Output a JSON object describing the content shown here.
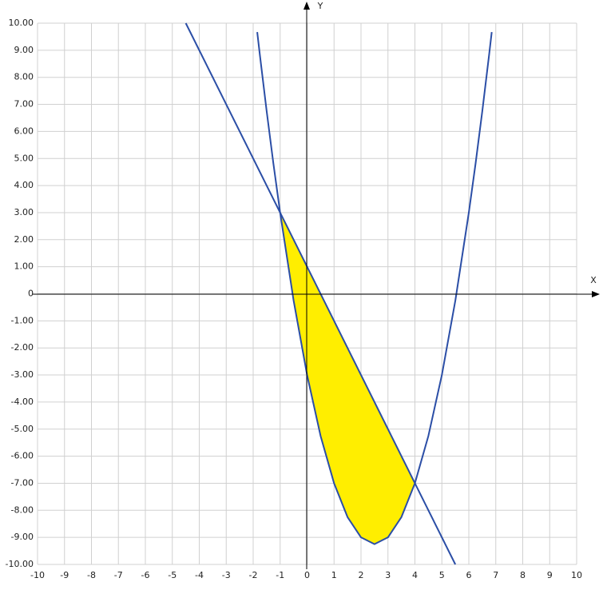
{
  "chart_data": {
    "type": "line",
    "x_label": "X",
    "y_label": "Y",
    "xlim": [
      -10,
      10
    ],
    "xticks": [
      -10,
      -9,
      -8,
      -7,
      -6,
      -5,
      -4,
      -3,
      -2,
      -1,
      0,
      1,
      2,
      3,
      4,
      5,
      6,
      7,
      8,
      9,
      10
    ],
    "ylim": [
      -10,
      10
    ],
    "yticks": [
      {
        "value": -10,
        "label": "-10.00"
      },
      {
        "value": -9,
        "label": "-9.00"
      },
      {
        "value": -8,
        "label": "-8.00"
      },
      {
        "value": -7,
        "label": "-7.00"
      },
      {
        "value": -6,
        "label": "-6.00"
      },
      {
        "value": -5,
        "label": "-5.00"
      },
      {
        "value": -4,
        "label": "-4.00"
      },
      {
        "value": -3,
        "label": "-3.00"
      },
      {
        "value": -2,
        "label": "-2.00"
      },
      {
        "value": -1,
        "label": "-1.00"
      },
      0,
      {
        "value": 1,
        "label": "1.00"
      },
      {
        "value": 2,
        "label": "2.00"
      },
      {
        "value": 3,
        "label": "3.00"
      },
      {
        "value": 4,
        "label": "4.00"
      },
      {
        "value": 5,
        "label": "5.00"
      },
      {
        "value": 6,
        "label": "6.00"
      },
      {
        "value": 7,
        "label": "7.00"
      },
      {
        "value": 8,
        "label": "8.00"
      },
      {
        "value": 9,
        "label": "9.00"
      },
      {
        "value": 10,
        "label": "10.00"
      }
    ],
    "grid": true,
    "series": [
      {
        "color": "#2b4ea6",
        "x": [
          -1.85,
          -1.75,
          -1.5,
          -1.25,
          -1,
          -0.5,
          0,
          0.5,
          1,
          1.5,
          2,
          2.5,
          3,
          3.5,
          4,
          4.5,
          5,
          5.5,
          6,
          6.25,
          6.5,
          6.75,
          6.85
        ],
        "values": [
          9.67,
          8.81,
          6.75,
          4.81,
          3,
          -0.25,
          -3,
          -5.25,
          -7,
          -8.25,
          -9,
          -9.25,
          -9,
          -8.25,
          -7,
          -5.25,
          -3,
          -0.25,
          3,
          4.81,
          6.75,
          8.81,
          9.67
        ]
      },
      {
        "color": "#2b4ea6",
        "x": [
          -4.5,
          5.5
        ],
        "values": [
          10,
          -10
        ]
      }
    ],
    "area": {
      "color": "#ffee00",
      "x": [
        -1,
        -0.5,
        0,
        0.5,
        1,
        1.5,
        2,
        2.5,
        3,
        3.5,
        4
      ],
      "y_upper": [
        3,
        2,
        1,
        0,
        -1,
        -2,
        -3,
        -4,
        -5,
        -6,
        -7
      ],
      "y_lower": [
        3,
        -0.25,
        -3,
        -5.25,
        -7,
        -8.25,
        -9,
        -9.25,
        -9,
        -8.25,
        -7
      ]
    }
  }
}
